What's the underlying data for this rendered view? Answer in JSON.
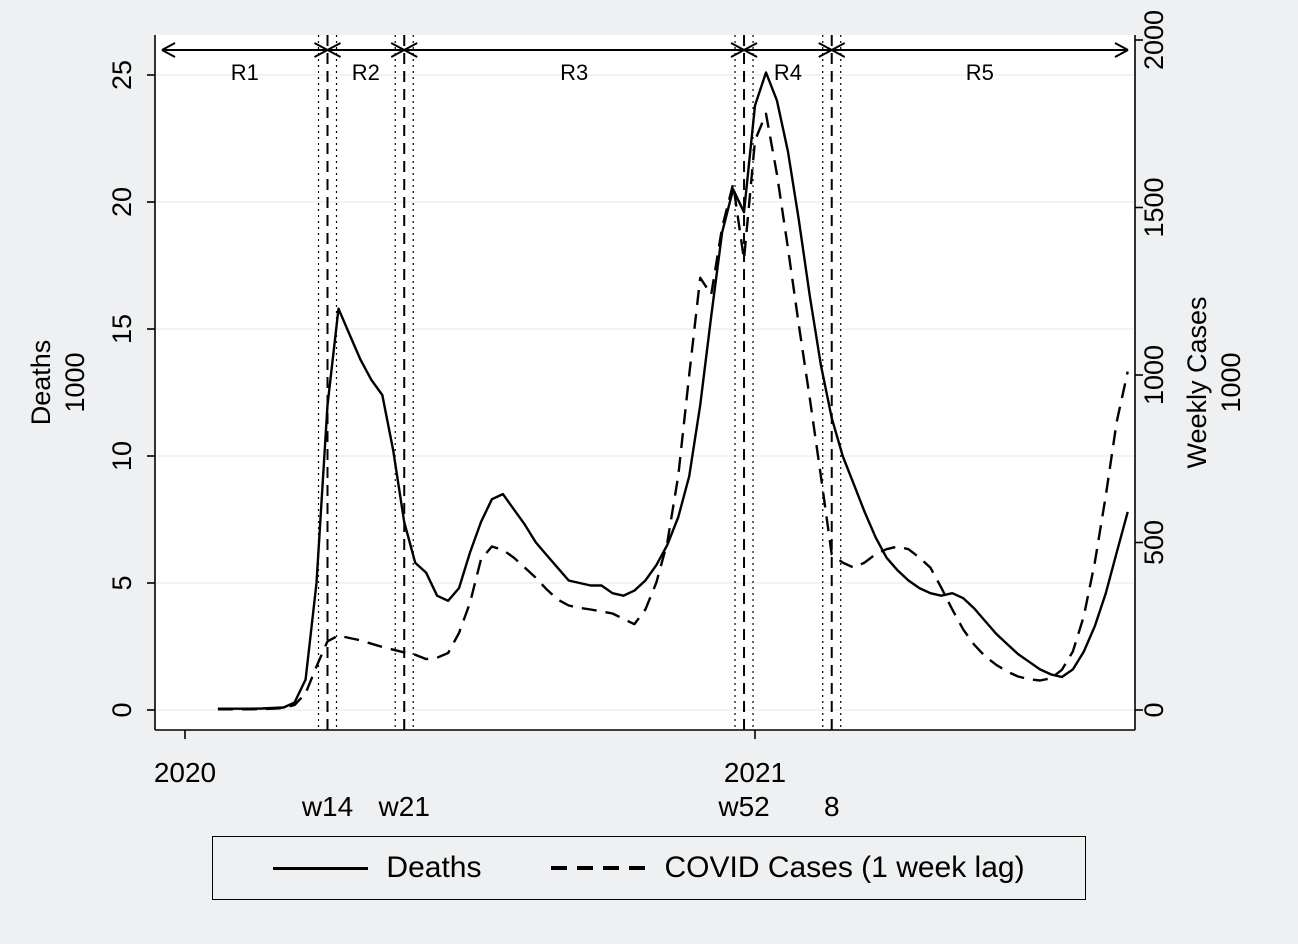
{
  "figure": {
    "background": "#eff0f1",
    "plot_background": "#ffffff",
    "line_color": "#000000",
    "grid_color": "#e7e7e7"
  },
  "chart_data": {
    "type": "line",
    "title": "",
    "x_axis": {
      "year_ticks": [
        {
          "label": "2020",
          "week": 1
        },
        {
          "label": "2021",
          "week": 53
        }
      ],
      "event_labels": [
        {
          "label": "w14",
          "week": 14
        },
        {
          "label": "w21",
          "week": 21
        },
        {
          "label": "w52",
          "week": 52
        },
        {
          "label": "8",
          "week": 60
        }
      ]
    },
    "left_axis": {
      "title_lines": [
        "Deaths",
        "1000"
      ],
      "ticks": [
        0,
        5,
        10,
        15,
        20,
        25
      ],
      "range": [
        0,
        26.5
      ]
    },
    "right_axis": {
      "title_lines": [
        "Weekly Cases",
        "1000"
      ],
      "ticks": [
        0,
        500,
        1000,
        1500,
        2000
      ],
      "range": [
        0,
        2100
      ]
    },
    "regions": {
      "labels": [
        "R1",
        "R2",
        "R3",
        "R4",
        "R5"
      ],
      "boundary_weeks": [
        14,
        21,
        52,
        60
      ]
    },
    "series": [
      {
        "name": "Deaths",
        "axis": "left",
        "line_style": "solid",
        "start_week": 4,
        "values": [
          0.05,
          0.05,
          0.05,
          0.05,
          0.06,
          0.08,
          0.1,
          0.3,
          1.2,
          5.0,
          12.0,
          15.8,
          14.8,
          13.8,
          13.0,
          12.4,
          10.2,
          7.4,
          5.8,
          5.4,
          4.5,
          4.3,
          4.8,
          6.2,
          7.4,
          8.3,
          8.5,
          7.9,
          7.3,
          6.6,
          6.1,
          5.6,
          5.1,
          5.0,
          4.9,
          4.9,
          4.6,
          4.5,
          4.7,
          5.1,
          5.7,
          6.5,
          7.6,
          9.2,
          12.0,
          15.5,
          18.8,
          20.5,
          19.6,
          23.8,
          25.1,
          24.0,
          22.0,
          19.3,
          16.3,
          13.6,
          11.5,
          10.0,
          8.9,
          7.8,
          6.8,
          6.0,
          5.5,
          5.1,
          4.8,
          4.6,
          4.5,
          4.6,
          4.4,
          4.0,
          3.5,
          3.0,
          2.6,
          2.2,
          1.9,
          1.6,
          1.4,
          1.3,
          1.6,
          2.3,
          3.3,
          4.6,
          6.2,
          7.8
        ]
      },
      {
        "name": "COVID Cases (1 week lag)",
        "axis": "right",
        "line_style": "dashed",
        "start_week": 4,
        "values": [
          2,
          2,
          2,
          2,
          3,
          4,
          6,
          15,
          50,
          130,
          205,
          222,
          215,
          208,
          198,
          188,
          180,
          172,
          165,
          152,
          156,
          170,
          230,
          320,
          450,
          488,
          478,
          455,
          425,
          395,
          360,
          330,
          312,
          305,
          300,
          294,
          288,
          272,
          256,
          300,
          380,
          500,
          700,
          1000,
          1290,
          1240,
          1440,
          1570,
          1345,
          1700,
          1780,
          1600,
          1380,
          1150,
          930,
          700,
          465,
          440,
          425,
          440,
          465,
          480,
          488,
          480,
          455,
          425,
          365,
          300,
          240,
          195,
          160,
          135,
          115,
          100,
          92,
          88,
          95,
          120,
          175,
          280,
          440,
          640,
          860,
          1010
        ]
      }
    ]
  },
  "legend": {
    "items": [
      {
        "label": "Deaths",
        "style": "solid"
      },
      {
        "label": "COVID Cases (1 week lag)",
        "style": "dashed"
      }
    ]
  }
}
